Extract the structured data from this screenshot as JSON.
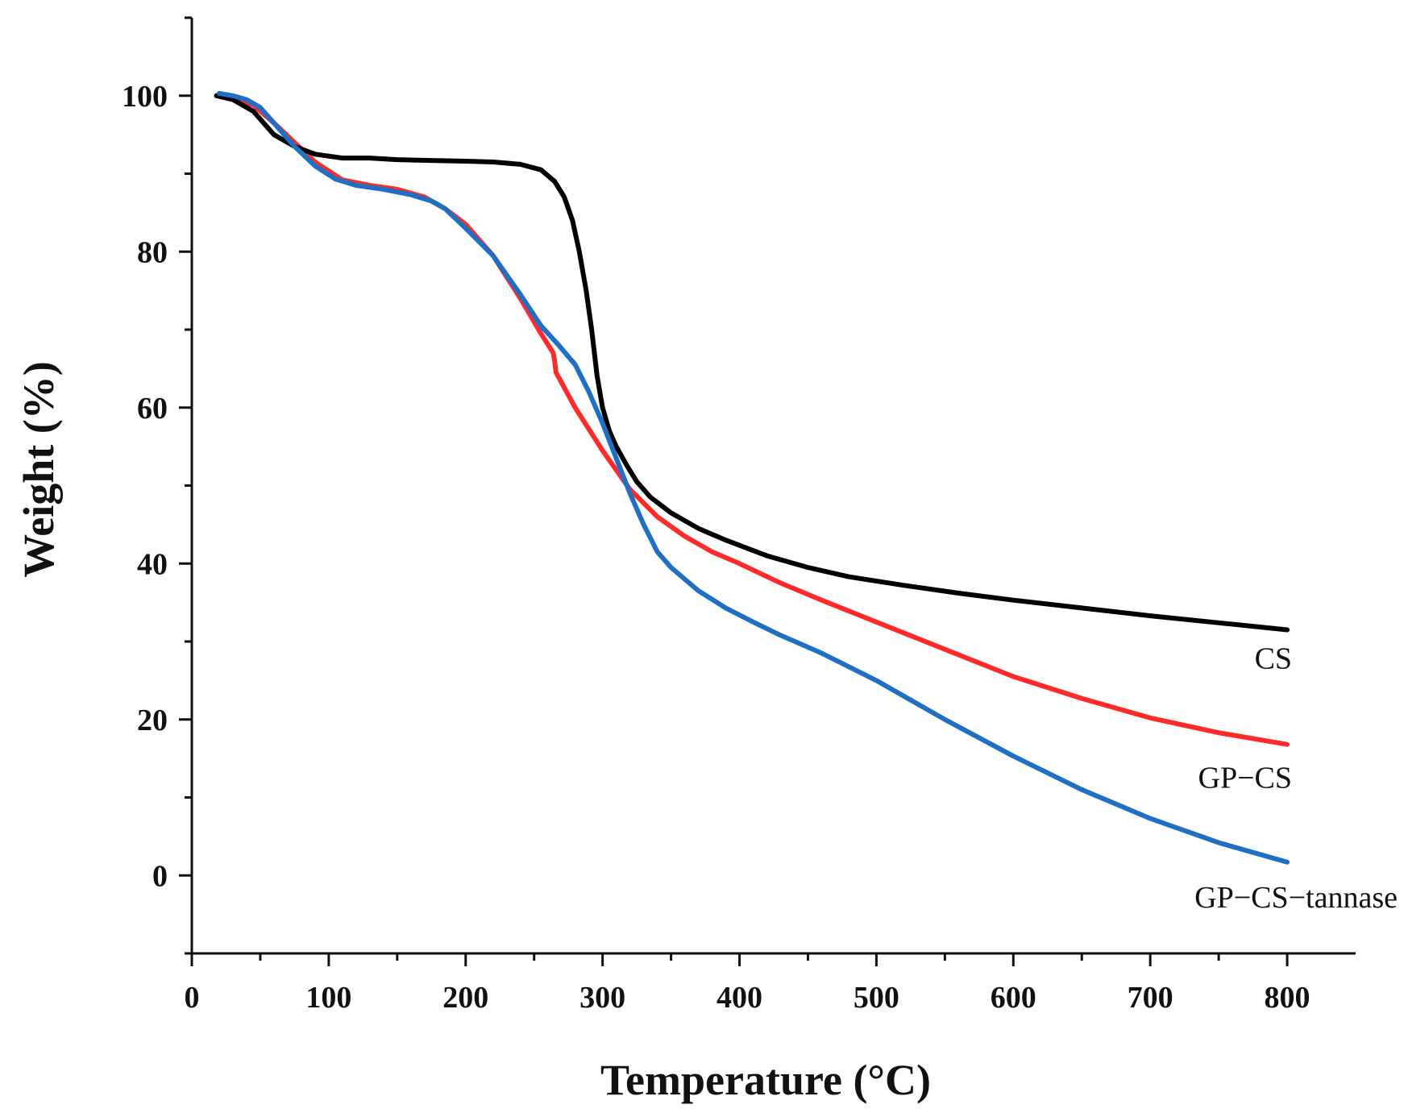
{
  "chart_data": {
    "type": "line",
    "title": "",
    "xlabel": "Temperature (°C)",
    "ylabel": "Weight (%)",
    "xlim": [
      0,
      850
    ],
    "ylim": [
      -10,
      110
    ],
    "xticks": [
      0,
      100,
      200,
      300,
      400,
      500,
      600,
      700,
      800
    ],
    "xtick_labels": [
      "0",
      "100",
      "200",
      "300",
      "400",
      "500",
      "600",
      "700",
      "800"
    ],
    "yticks": [
      0,
      20,
      40,
      60,
      80,
      100
    ],
    "ytick_labels": [
      "0",
      "20",
      "40",
      "60",
      "80",
      "100"
    ],
    "grid": false,
    "legend": "inline labels at right end of each curve",
    "series": [
      {
        "name": "CS",
        "color": "#000000",
        "x": [
          18,
          30,
          45,
          60,
          75,
          90,
          110,
          130,
          150,
          175,
          200,
          220,
          240,
          255,
          265,
          272,
          278,
          283,
          288,
          292,
          296,
          300,
          305,
          310,
          318,
          325,
          335,
          350,
          370,
          390,
          420,
          450,
          480,
          520,
          560,
          600,
          650,
          700,
          750,
          800
        ],
        "y": [
          100,
          99.5,
          98,
          95,
          93.5,
          92.5,
          92,
          92,
          91.8,
          91.7,
          91.6,
          91.5,
          91.2,
          90.5,
          89,
          87,
          84,
          80,
          75,
          70,
          64,
          60,
          57,
          55,
          52.5,
          50.5,
          48.5,
          46.5,
          44.5,
          43,
          41,
          39.5,
          38.3,
          37.2,
          36.2,
          35.3,
          34.3,
          33.3,
          32.4,
          31.5
        ]
      },
      {
        "name": "GP−CS",
        "color": "#ff2a2a",
        "x": [
          18,
          30,
          45,
          60,
          75,
          90,
          110,
          130,
          150,
          170,
          185,
          200,
          220,
          240,
          255,
          264,
          265,
          266,
          280,
          300,
          320,
          340,
          360,
          380,
          400,
          430,
          460,
          500,
          550,
          600,
          650,
          700,
          750,
          800
        ],
        "y": [
          100,
          99.8,
          98.8,
          96.5,
          94,
          91.5,
          89.2,
          88.5,
          88,
          87,
          85.5,
          83.5,
          79.5,
          74,
          69.5,
          67,
          66,
          64.5,
          60,
          54.5,
          49.5,
          46,
          43.5,
          41.5,
          40,
          37.5,
          35.3,
          32.5,
          29,
          25.5,
          22.7,
          20.2,
          18.3,
          16.8
        ]
      },
      {
        "name": "GP−CS−tannase",
        "color": "#1f6fc5",
        "x": [
          20,
          30,
          40,
          50,
          60,
          75,
          90,
          105,
          120,
          140,
          160,
          175,
          185,
          200,
          220,
          240,
          255,
          268,
          280,
          290,
          300,
          310,
          320,
          330,
          340,
          350,
          370,
          390,
          410,
          430,
          460,
          500,
          550,
          600,
          650,
          700,
          750,
          800
        ],
        "y": [
          100.3,
          100,
          99.5,
          98.5,
          96.5,
          93.5,
          91,
          89.3,
          88.5,
          88,
          87.3,
          86.5,
          85.5,
          83,
          79.5,
          74.5,
          70.5,
          68,
          65.5,
          62,
          58,
          53.5,
          49,
          45,
          41.5,
          39.5,
          36.5,
          34.3,
          32.5,
          30.8,
          28.5,
          25,
          20,
          15.3,
          11,
          7.3,
          4.2,
          1.7
        ]
      }
    ],
    "annotations": [
      "CS",
      "GP−CS",
      "GP−CS−tannase"
    ]
  }
}
